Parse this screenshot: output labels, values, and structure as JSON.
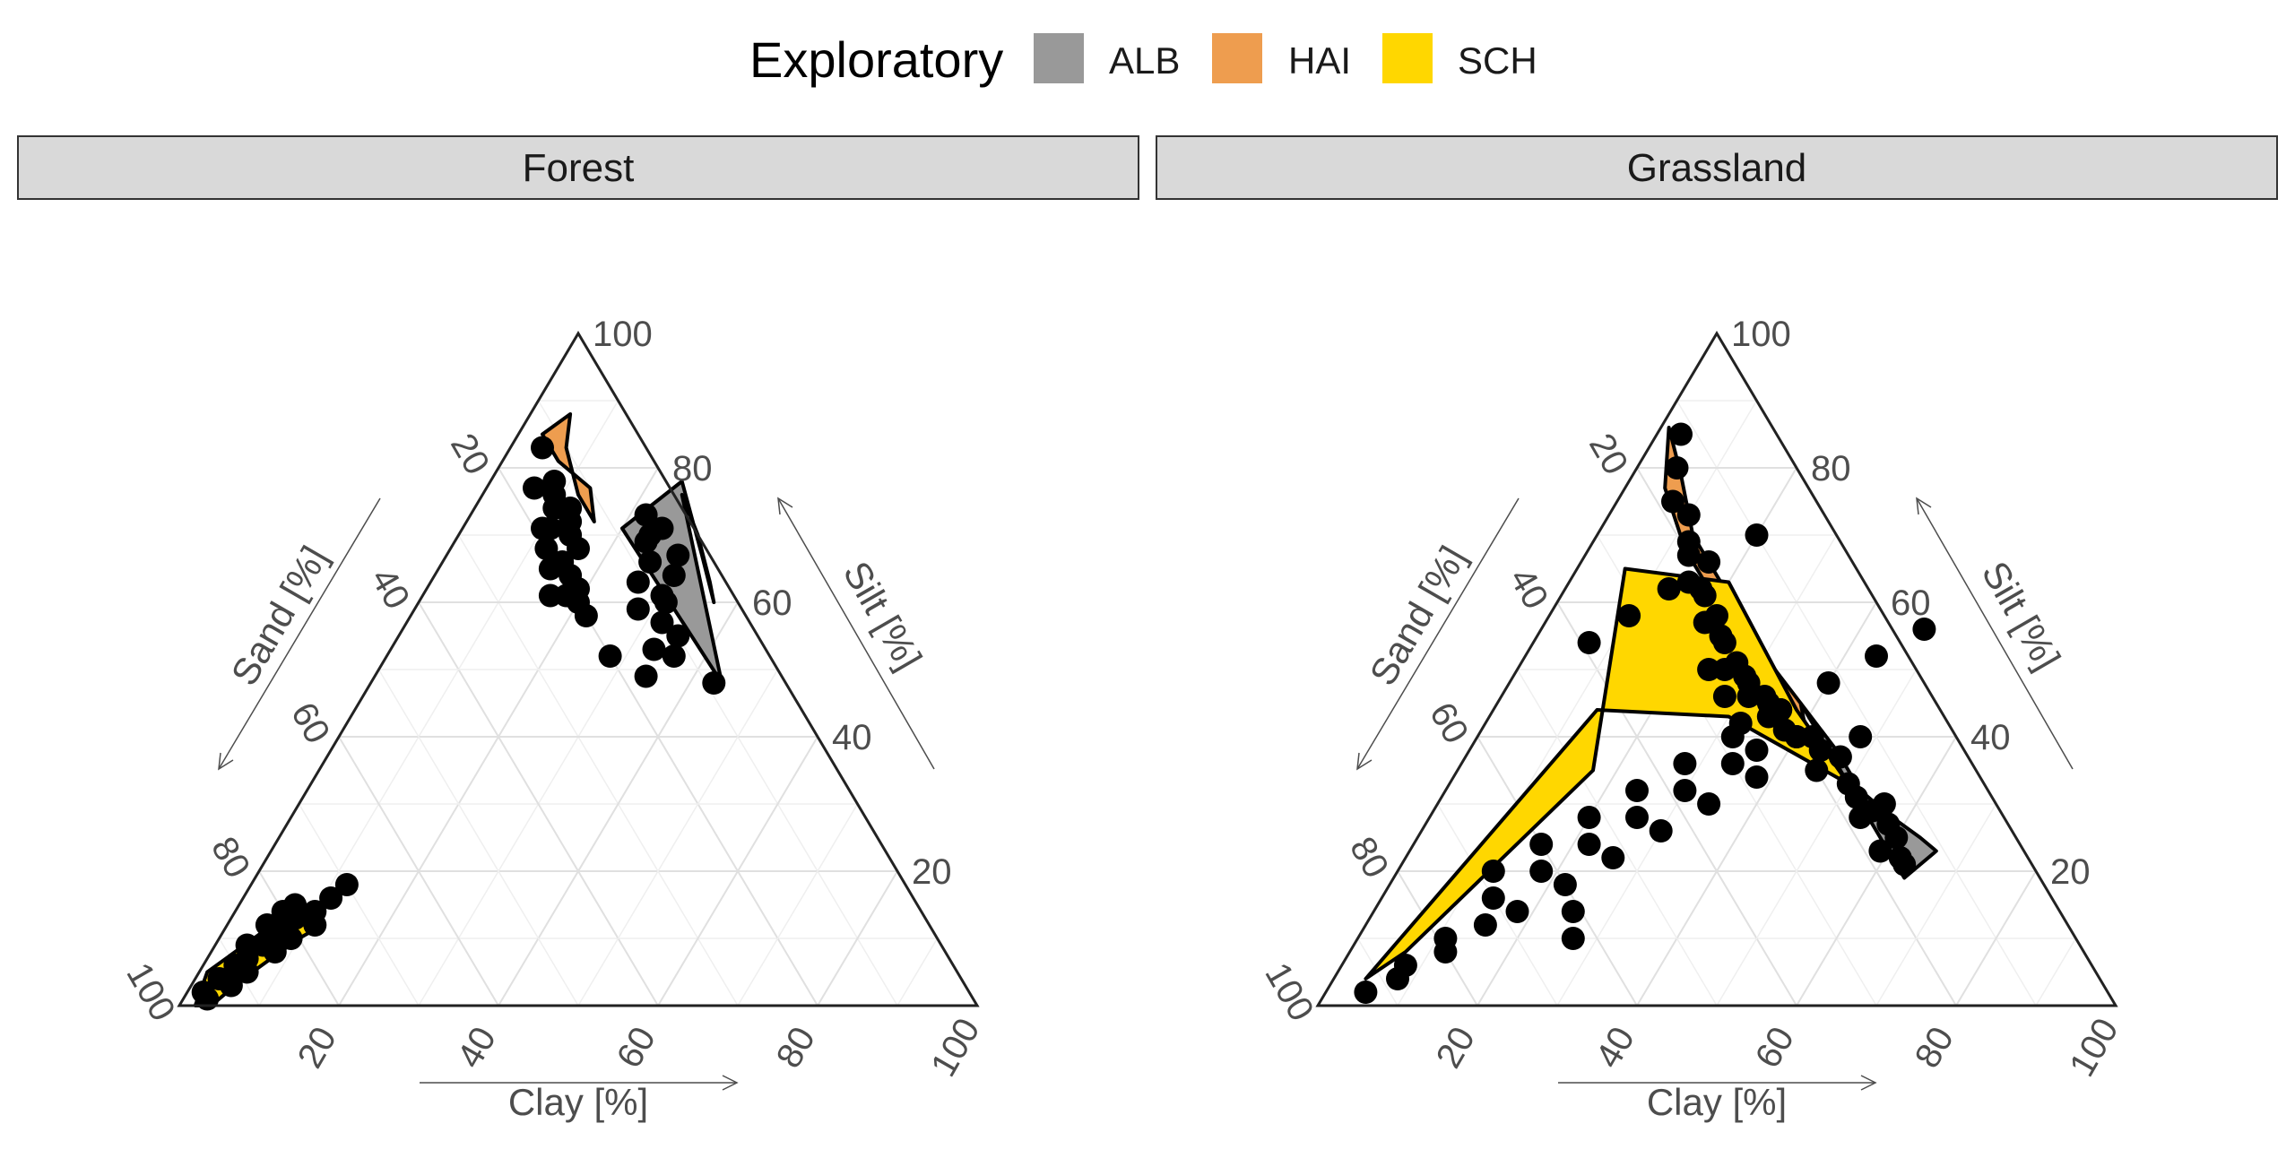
{
  "chart_data": {
    "type": "scatter",
    "subtype": "ternary",
    "legend": {
      "title": "Exploratory",
      "position": "top",
      "items": [
        {
          "name": "ALB",
          "color": "#999999"
        },
        {
          "name": "HAI",
          "color": "#EE9D4F"
        },
        {
          "name": "SCH",
          "color": "#FFD700"
        }
      ]
    },
    "axes": {
      "clay": {
        "title": "Clay [%]",
        "ticks": [
          "20",
          "40",
          "60",
          "80",
          "100"
        ]
      },
      "silt": {
        "title": "Silt [%]",
        "ticks": [
          "20",
          "40",
          "60",
          "80",
          "100"
        ]
      },
      "sand": {
        "title": "Sand [%]",
        "ticks": [
          "20",
          "40",
          "60",
          "80",
          "100"
        ]
      },
      "range": [
        0,
        100
      ],
      "grid": true
    },
    "point_color": "#000000",
    "panels": [
      {
        "title": "Forest",
        "hulls": [
          {
            "group": "ALB",
            "vertices": [
              [
                44,
                48
              ],
              [
                20,
                71
              ],
              [
                24,
                78
              ],
              [
                32,
                67
              ],
              [
                37,
                60
              ],
              [
                35,
                63
              ],
              [
                30,
                70
              ],
              [
                25,
                76
              ]
            ]
          },
          {
            "group": "HAI",
            "vertices": [
              [
                5,
                88
              ],
              [
                3,
                85
              ],
              [
                7,
                81
              ],
              [
                13,
                77
              ],
              [
                16,
                72
              ],
              [
                12,
                76
              ],
              [
                7,
                83
              ]
            ]
          },
          {
            "group": "SCH",
            "vertices": [
              [
                2,
                0
              ],
              [
                4,
                0
              ],
              [
                6,
                4
              ],
              [
                10,
                10
              ],
              [
                12,
                12
              ],
              [
                9,
                13
              ],
              [
                5,
                11
              ],
              [
                1,
                5
              ]
            ]
          }
        ],
        "series": [
          {
            "group": "ALB",
            "clay": [
              43,
              26,
              24,
              30,
              30,
              32,
              33,
              28,
              36,
              35,
              34,
              24,
              26,
              28,
              22,
              25,
              29,
              31
            ],
            "silt": [
              48,
              63,
              70,
              64,
              61,
              57,
              53,
              52,
              52,
              55,
              49,
              69,
              66,
              59,
              73,
              71,
              67,
              60
            ]
          },
          {
            "group": "HAI",
            "clay": [
              4,
              8,
              10,
              6,
              10,
              13,
              12,
              16,
              17,
              18,
              11,
              14,
              15,
              19,
              20,
              22,
              16,
              9,
              12,
              14
            ],
            "silt": [
              83,
              78,
              74,
              77,
              71,
              72,
              68,
              68,
              64,
              61,
              71,
              65,
              66,
              62,
              60,
              58,
              61,
              76,
              74,
              70
            ]
          },
          {
            "group": "SCH",
            "clay": [
              2,
              3,
              4,
              5,
              5,
              6,
              6,
              7,
              8,
              8,
              9,
              10,
              11,
              11,
              12,
              4,
              5,
              7,
              3,
              6
            ],
            "silt": [
              2,
              4,
              6,
              3,
              7,
              9,
              5,
              11,
              8,
              13,
              10,
              14,
              16,
              12,
              18,
              9,
              12,
              15,
              1,
              14
            ]
          }
        ]
      },
      {
        "title": "Grassland",
        "hulls": [
          {
            "group": "ALB",
            "vertices": [
              [
                38,
                45
              ],
              [
                60,
                23
              ],
              [
                64,
                19
              ],
              [
                66,
                23
              ],
              [
                63,
                25
              ],
              [
                58,
                28
              ],
              [
                52,
                32
              ],
              [
                46,
                38
              ]
            ]
          },
          {
            "group": "HAI",
            "vertices": [
              [
                1,
                86
              ],
              [
                5,
                77
              ],
              [
                12,
                68
              ],
              [
                20,
                60
              ],
              [
                35,
                44
              ],
              [
                40,
                42
              ],
              [
                38,
                45
              ],
              [
                30,
                52
              ],
              [
                20,
                62
              ],
              [
                12,
                70
              ],
              [
                6,
                79
              ]
            ]
          },
          {
            "group": "SCH",
            "vertices": [
              [
                6,
                65
              ],
              [
                20,
                63
              ],
              [
                38,
                44
              ],
              [
                50,
                33
              ],
              [
                30,
                43
              ],
              [
                13,
                44
              ],
              [
                4,
                4
              ],
              [
                7,
                8
              ],
              [
                17,
                35
              ]
            ]
          }
        ],
        "series": [
          {
            "group": "ALB",
            "clay": [
              42,
              50,
              55,
              58,
              60,
              62,
              56,
              52,
              47,
              45,
              48,
              63,
              59,
              54
            ],
            "silt": [
              40,
              33,
              29,
              27,
              25,
              22,
              30,
              31,
              37,
              35,
              40,
              21,
              23,
              28
            ]
          },
          {
            "group": "HAI",
            "clay": [
              3,
              5,
              7,
              10,
              13,
              15,
              18,
              21,
              24,
              27,
              30,
              33,
              36,
              40,
              44,
              20,
              26,
              31,
              35,
              38,
              12,
              17,
              23,
              29,
              34
            ],
            "silt": [
              85,
              80,
              75,
              73,
              67,
              63,
              61,
              58,
              54,
              51,
              48,
              46,
              44,
              40,
              38,
              57,
              50,
              46,
              43,
              41,
              69,
              62,
              55,
              49,
              45
            ]
          },
          {
            "group": "SCH",
            "clay": [
              8,
              12,
              15,
              18,
              22,
              26,
              30,
              34,
              38,
              40,
              12,
              16,
              20,
              24,
              28,
              32,
              36,
              40,
              44,
              48,
              5,
              8,
              11,
              14,
              18,
              22,
              26,
              30,
              34,
              7,
              10,
              13,
              16,
              20,
              24,
              28,
              32,
              36,
              25,
              27
            ],
            "silt": [
              6,
              8,
              12,
              14,
              18,
              22,
              26,
              30,
              34,
              40,
              20,
              24,
              28,
              32,
              36,
              40,
              44,
              48,
              52,
              56,
              2,
              4,
              10,
              16,
              20,
              24,
              28,
              32,
              36,
              54,
              58,
              62,
              66,
              70,
              50,
              46,
              42,
              38,
              14,
              10
            ]
          }
        ]
      }
    ]
  }
}
